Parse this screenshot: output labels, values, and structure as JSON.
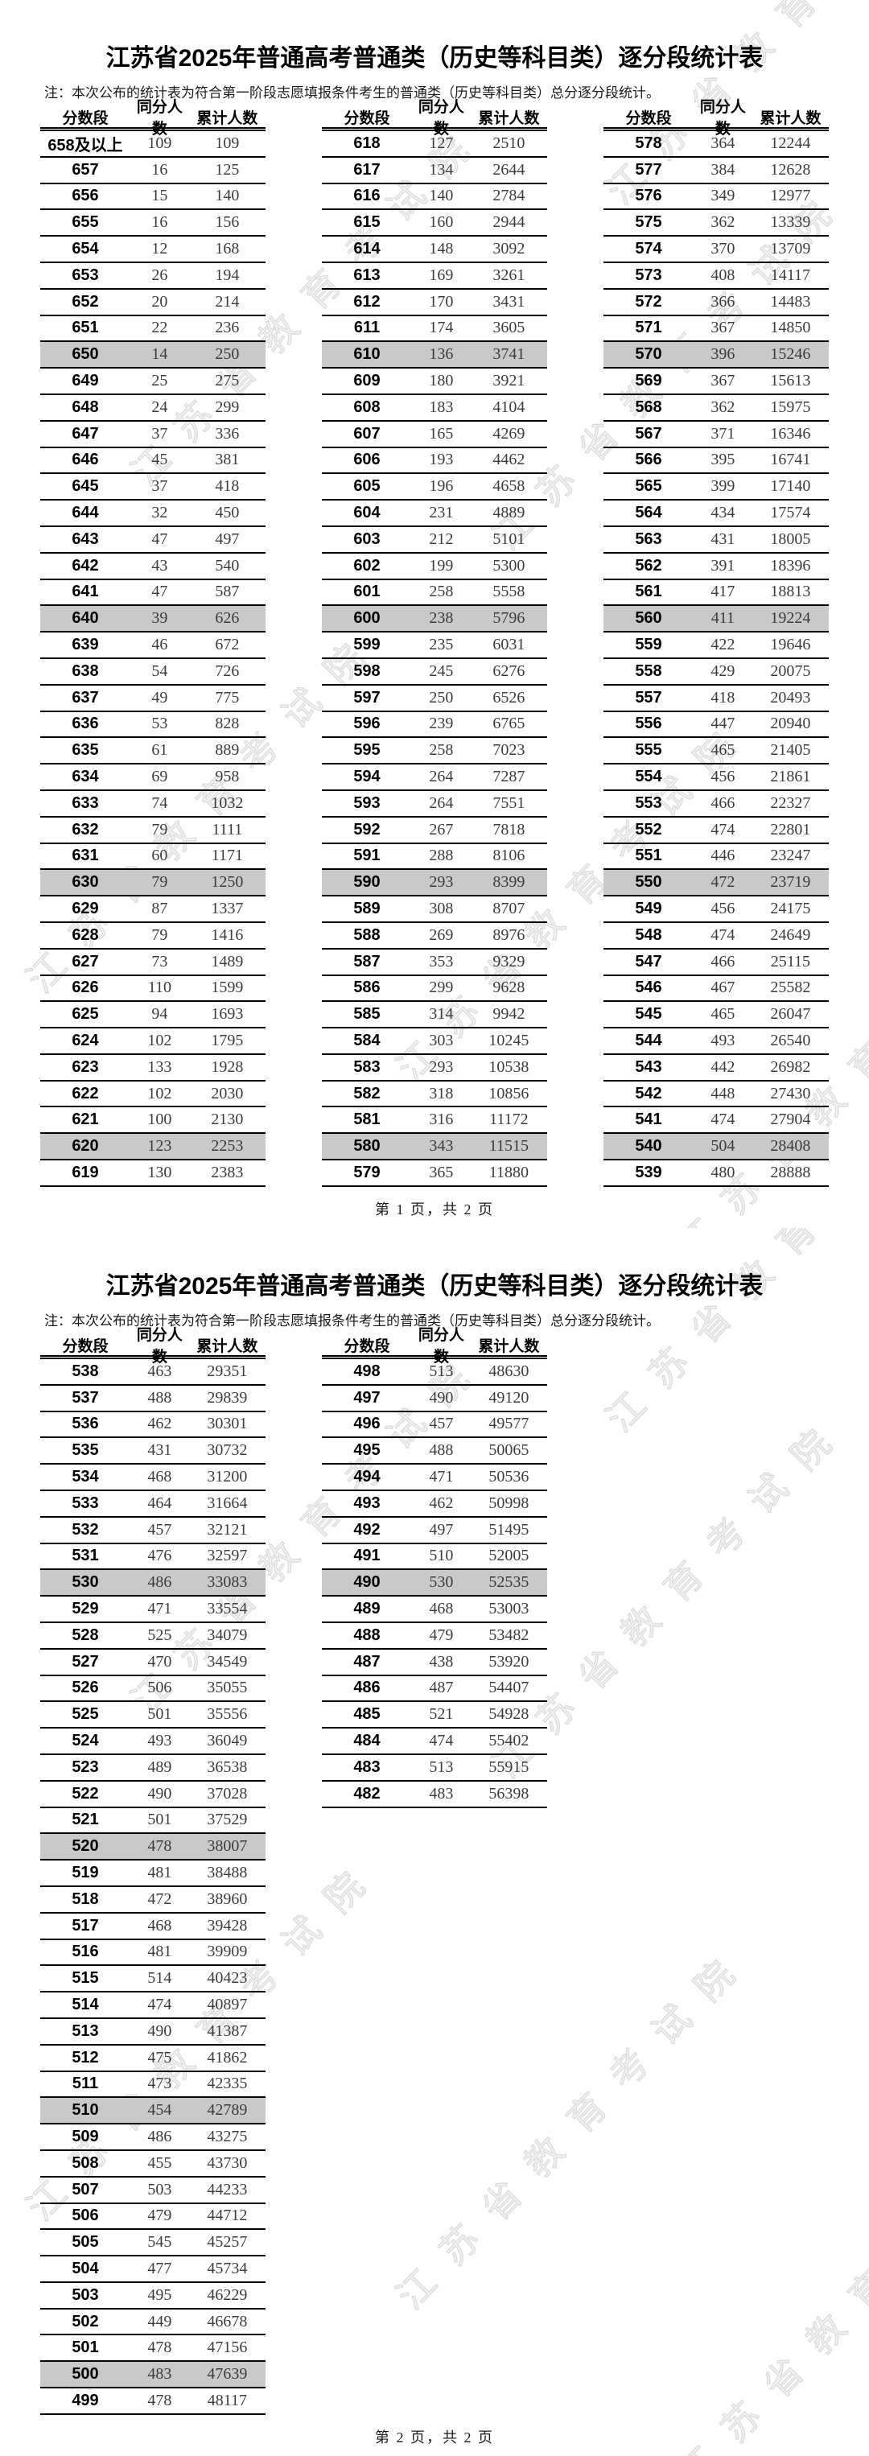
{
  "watermark": {
    "text": "江苏省教育考试院"
  },
  "page1": {
    "title": "江苏省2025年普通高考普通类（历史等科目类）逐分段统计表",
    "note": "注：本次公布的统计表为符合第一阶段志愿填报条件考生的普通类（历史等科目类）总分逐分段统计。",
    "headers": [
      "分数段",
      "同分人数",
      "累计人数"
    ],
    "footer": "第 1 页，共 2 页",
    "col1": [
      [
        "658及以上",
        109,
        109
      ],
      [
        657,
        16,
        125
      ],
      [
        656,
        15,
        140
      ],
      [
        655,
        16,
        156
      ],
      [
        654,
        12,
        168
      ],
      [
        653,
        26,
        194
      ],
      [
        652,
        20,
        214
      ],
      [
        651,
        22,
        236
      ],
      [
        650,
        14,
        250
      ],
      [
        649,
        25,
        275
      ],
      [
        648,
        24,
        299
      ],
      [
        647,
        37,
        336
      ],
      [
        646,
        45,
        381
      ],
      [
        645,
        37,
        418
      ],
      [
        644,
        32,
        450
      ],
      [
        643,
        47,
        497
      ],
      [
        642,
        43,
        540
      ],
      [
        641,
        47,
        587
      ],
      [
        640,
        39,
        626
      ],
      [
        639,
        46,
        672
      ],
      [
        638,
        54,
        726
      ],
      [
        637,
        49,
        775
      ],
      [
        636,
        53,
        828
      ],
      [
        635,
        61,
        889
      ],
      [
        634,
        69,
        958
      ],
      [
        633,
        74,
        1032
      ],
      [
        632,
        79,
        1111
      ],
      [
        631,
        60,
        1171
      ],
      [
        630,
        79,
        1250
      ],
      [
        629,
        87,
        1337
      ],
      [
        628,
        79,
        1416
      ],
      [
        627,
        73,
        1489
      ],
      [
        626,
        110,
        1599
      ],
      [
        625,
        94,
        1693
      ],
      [
        624,
        102,
        1795
      ],
      [
        623,
        133,
        1928
      ],
      [
        622,
        102,
        2030
      ],
      [
        621,
        100,
        2130
      ],
      [
        620,
        123,
        2253
      ],
      [
        619,
        130,
        2383
      ]
    ],
    "col2": [
      [
        618,
        127,
        2510
      ],
      [
        617,
        134,
        2644
      ],
      [
        616,
        140,
        2784
      ],
      [
        615,
        160,
        2944
      ],
      [
        614,
        148,
        3092
      ],
      [
        613,
        169,
        3261
      ],
      [
        612,
        170,
        3431
      ],
      [
        611,
        174,
        3605
      ],
      [
        610,
        136,
        3741
      ],
      [
        609,
        180,
        3921
      ],
      [
        608,
        183,
        4104
      ],
      [
        607,
        165,
        4269
      ],
      [
        606,
        193,
        4462
      ],
      [
        605,
        196,
        4658
      ],
      [
        604,
        231,
        4889
      ],
      [
        603,
        212,
        5101
      ],
      [
        602,
        199,
        5300
      ],
      [
        601,
        258,
        5558
      ],
      [
        600,
        238,
        5796
      ],
      [
        599,
        235,
        6031
      ],
      [
        598,
        245,
        6276
      ],
      [
        597,
        250,
        6526
      ],
      [
        596,
        239,
        6765
      ],
      [
        595,
        258,
        7023
      ],
      [
        594,
        264,
        7287
      ],
      [
        593,
        264,
        7551
      ],
      [
        592,
        267,
        7818
      ],
      [
        591,
        288,
        8106
      ],
      [
        590,
        293,
        8399
      ],
      [
        589,
        308,
        8707
      ],
      [
        588,
        269,
        8976
      ],
      [
        587,
        353,
        9329
      ],
      [
        586,
        299,
        9628
      ],
      [
        585,
        314,
        9942
      ],
      [
        584,
        303,
        10245
      ],
      [
        583,
        293,
        10538
      ],
      [
        582,
        318,
        10856
      ],
      [
        581,
        316,
        11172
      ],
      [
        580,
        343,
        11515
      ],
      [
        579,
        365,
        11880
      ]
    ],
    "col3": [
      [
        578,
        364,
        12244
      ],
      [
        577,
        384,
        12628
      ],
      [
        576,
        349,
        12977
      ],
      [
        575,
        362,
        13339
      ],
      [
        574,
        370,
        13709
      ],
      [
        573,
        408,
        14117
      ],
      [
        572,
        366,
        14483
      ],
      [
        571,
        367,
        14850
      ],
      [
        570,
        396,
        15246
      ],
      [
        569,
        367,
        15613
      ],
      [
        568,
        362,
        15975
      ],
      [
        567,
        371,
        16346
      ],
      [
        566,
        395,
        16741
      ],
      [
        565,
        399,
        17140
      ],
      [
        564,
        434,
        17574
      ],
      [
        563,
        431,
        18005
      ],
      [
        562,
        391,
        18396
      ],
      [
        561,
        417,
        18813
      ],
      [
        560,
        411,
        19224
      ],
      [
        559,
        422,
        19646
      ],
      [
        558,
        429,
        20075
      ],
      [
        557,
        418,
        20493
      ],
      [
        556,
        447,
        20940
      ],
      [
        555,
        465,
        21405
      ],
      [
        554,
        456,
        21861
      ],
      [
        553,
        466,
        22327
      ],
      [
        552,
        474,
        22801
      ],
      [
        551,
        446,
        23247
      ],
      [
        550,
        472,
        23719
      ],
      [
        549,
        456,
        24175
      ],
      [
        548,
        474,
        24649
      ],
      [
        547,
        466,
        25115
      ],
      [
        546,
        467,
        25582
      ],
      [
        545,
        465,
        26047
      ],
      [
        544,
        493,
        26540
      ],
      [
        543,
        442,
        26982
      ],
      [
        542,
        448,
        27430
      ],
      [
        541,
        474,
        27904
      ],
      [
        540,
        504,
        28408
      ],
      [
        539,
        480,
        28888
      ]
    ]
  },
  "page2": {
    "title": "江苏省2025年普通高考普通类（历史等科目类）逐分段统计表",
    "note": "注：本次公布的统计表为符合第一阶段志愿填报条件考生的普通类（历史等科目类）总分逐分段统计。",
    "headers": [
      "分数段",
      "同分人数",
      "累计人数"
    ],
    "footer": "第 2 页，共 2 页",
    "col1": [
      [
        538,
        463,
        29351
      ],
      [
        537,
        488,
        29839
      ],
      [
        536,
        462,
        30301
      ],
      [
        535,
        431,
        30732
      ],
      [
        534,
        468,
        31200
      ],
      [
        533,
        464,
        31664
      ],
      [
        532,
        457,
        32121
      ],
      [
        531,
        476,
        32597
      ],
      [
        530,
        486,
        33083
      ],
      [
        529,
        471,
        33554
      ],
      [
        528,
        525,
        34079
      ],
      [
        527,
        470,
        34549
      ],
      [
        526,
        506,
        35055
      ],
      [
        525,
        501,
        35556
      ],
      [
        524,
        493,
        36049
      ],
      [
        523,
        489,
        36538
      ],
      [
        522,
        490,
        37028
      ],
      [
        521,
        501,
        37529
      ],
      [
        520,
        478,
        38007
      ],
      [
        519,
        481,
        38488
      ],
      [
        518,
        472,
        38960
      ],
      [
        517,
        468,
        39428
      ],
      [
        516,
        481,
        39909
      ],
      [
        515,
        514,
        40423
      ],
      [
        514,
        474,
        40897
      ],
      [
        513,
        490,
        41387
      ],
      [
        512,
        475,
        41862
      ],
      [
        511,
        473,
        42335
      ],
      [
        510,
        454,
        42789
      ],
      [
        509,
        486,
        43275
      ],
      [
        508,
        455,
        43730
      ],
      [
        507,
        503,
        44233
      ],
      [
        506,
        479,
        44712
      ],
      [
        505,
        545,
        45257
      ],
      [
        504,
        477,
        45734
      ],
      [
        503,
        495,
        46229
      ],
      [
        502,
        449,
        46678
      ],
      [
        501,
        478,
        47156
      ],
      [
        500,
        483,
        47639
      ],
      [
        499,
        478,
        48117
      ]
    ],
    "col2": [
      [
        498,
        513,
        48630
      ],
      [
        497,
        490,
        49120
      ],
      [
        496,
        457,
        49577
      ],
      [
        495,
        488,
        50065
      ],
      [
        494,
        471,
        50536
      ],
      [
        493,
        462,
        50998
      ],
      [
        492,
        497,
        51495
      ],
      [
        491,
        510,
        52005
      ],
      [
        490,
        530,
        52535
      ],
      [
        489,
        468,
        53003
      ],
      [
        488,
        479,
        53482
      ],
      [
        487,
        438,
        53920
      ],
      [
        486,
        487,
        54407
      ],
      [
        485,
        521,
        54928
      ],
      [
        484,
        474,
        55402
      ],
      [
        483,
        513,
        55915
      ],
      [
        482,
        483,
        56398
      ]
    ]
  }
}
